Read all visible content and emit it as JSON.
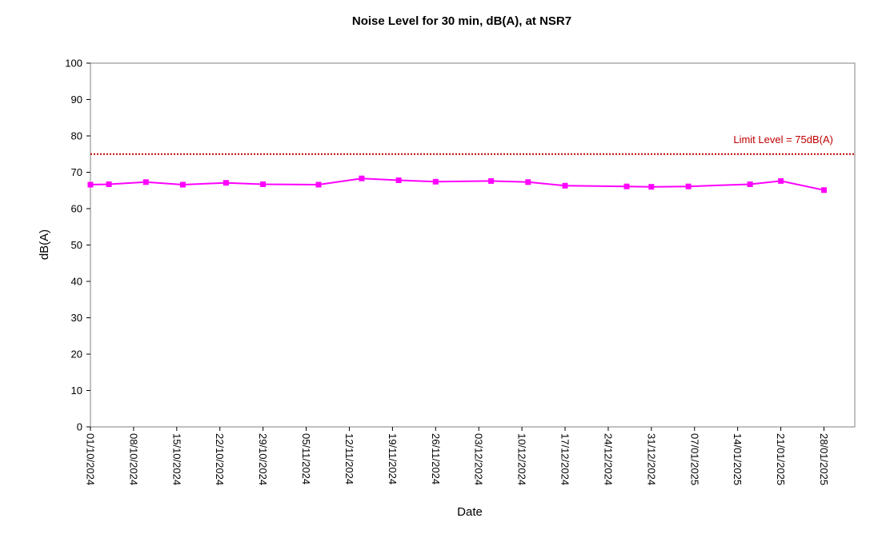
{
  "chart_data": {
    "type": "line",
    "title": "Noise Level for 30 min, dB(A), at NSR7",
    "xlabel": "Date",
    "ylabel": "dB(A)",
    "ylim": [
      0,
      100
    ],
    "yticks": [
      0,
      10,
      20,
      30,
      40,
      50,
      60,
      70,
      80,
      90,
      100
    ],
    "xlim": [
      "2024-10-01",
      "2025-02-02"
    ],
    "x_tick_labels": [
      "01/10/2024",
      "08/10/2024",
      "15/10/2024",
      "22/10/2024",
      "29/10/2024",
      "05/11/2024",
      "12/11/2024",
      "19/11/2024",
      "26/11/2024",
      "03/12/2024",
      "10/12/2024",
      "17/12/2024",
      "24/12/2024",
      "31/12/2024",
      "07/01/2025",
      "14/01/2025",
      "21/01/2025",
      "28/01/2025"
    ],
    "grid": false,
    "series": [
      {
        "color": "#ff00ff",
        "marker": "square",
        "points": [
          {
            "x": "2024-10-01",
            "y": 66.6
          },
          {
            "x": "2024-10-04",
            "y": 66.7
          },
          {
            "x": "2024-10-10",
            "y": 67.3
          },
          {
            "x": "2024-10-16",
            "y": 66.6
          },
          {
            "x": "2024-10-23",
            "y": 67.1
          },
          {
            "x": "2024-10-29",
            "y": 66.7
          },
          {
            "x": "2024-11-07",
            "y": 66.6
          },
          {
            "x": "2024-11-14",
            "y": 68.3
          },
          {
            "x": "2024-11-20",
            "y": 67.8
          },
          {
            "x": "2024-11-26",
            "y": 67.4
          },
          {
            "x": "2024-12-05",
            "y": 67.6
          },
          {
            "x": "2024-12-11",
            "y": 67.3
          },
          {
            "x": "2024-12-17",
            "y": 66.3
          },
          {
            "x": "2024-12-27",
            "y": 66.1
          },
          {
            "x": "2024-12-31",
            "y": 66.0
          },
          {
            "x": "2025-01-06",
            "y": 66.1
          },
          {
            "x": "2025-01-16",
            "y": 66.7
          },
          {
            "x": "2025-01-21",
            "y": 67.6
          },
          {
            "x": "2025-01-28",
            "y": 65.1
          }
        ]
      }
    ],
    "reference_lines": [
      {
        "y": 75,
        "label": "Limit Level = 75dB(A)",
        "color": "#c00000",
        "style": "dotted"
      }
    ]
  }
}
